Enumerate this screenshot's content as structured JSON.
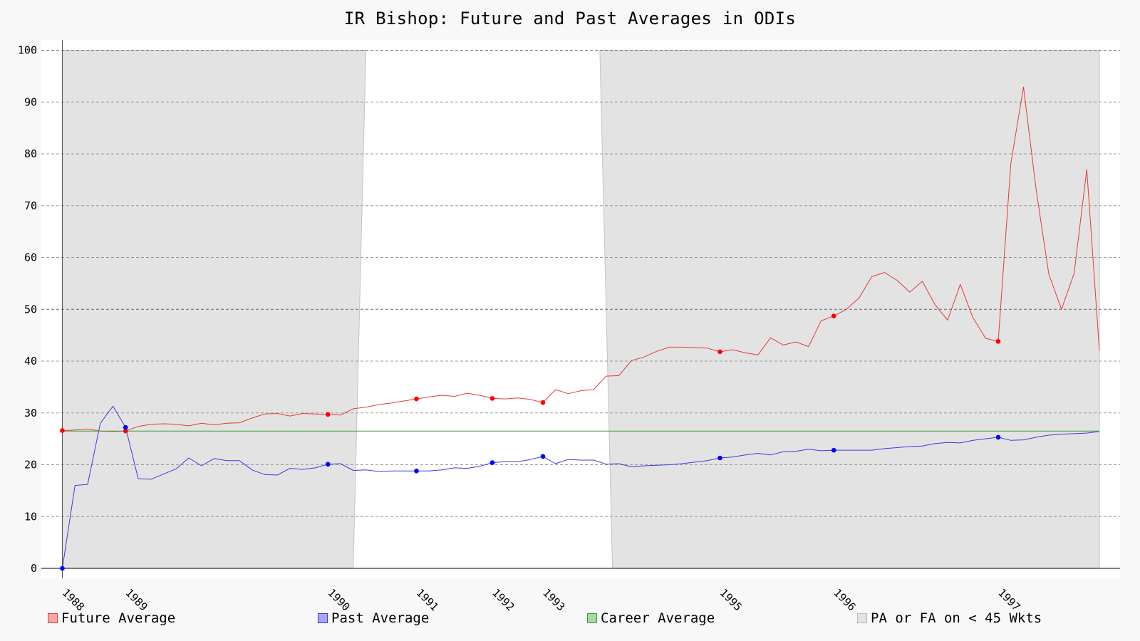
{
  "chart_data": {
    "type": "line",
    "title": "IR Bishop: Future and Past Averages in ODIs",
    "xlabel": "",
    "ylabel": "",
    "ylim": [
      0,
      100
    ],
    "yticks": [
      0,
      10,
      20,
      30,
      40,
      50,
      60,
      70,
      80,
      90,
      100
    ],
    "xtick_labels": [
      "1988",
      "1989",
      "1990",
      "1991",
      "1992",
      "1993",
      "1995",
      "1996",
      "1997"
    ],
    "xtick_match_index": [
      0,
      5,
      21,
      28,
      34,
      38,
      52,
      61,
      74
    ],
    "grid": "horizontal dashed",
    "legend_position": "bottom",
    "series": [
      {
        "name": "Future Average",
        "color": "#e33b3b",
        "values": [
          26.6,
          26.7,
          26.9,
          26.5,
          26.4,
          26.5,
          27.4,
          27.8,
          27.9,
          27.8,
          27.5,
          28.0,
          27.7,
          28.0,
          28.1,
          29.0,
          29.8,
          29.9,
          29.4,
          29.9,
          29.8,
          29.7,
          29.6,
          30.8,
          31.1,
          31.6,
          31.9,
          32.3,
          32.7,
          33.1,
          33.4,
          33.2,
          33.8,
          33.4,
          32.8,
          32.7,
          32.9,
          32.6,
          32.0,
          34.5,
          33.7,
          34.3,
          34.5,
          37.1,
          37.2,
          40.1,
          40.8,
          41.9,
          42.7,
          42.7,
          42.6,
          42.5,
          41.8,
          42.2,
          41.6,
          41.2,
          44.5,
          43.1,
          43.7,
          42.8,
          47.8,
          48.7,
          50.0,
          52.2,
          56.3,
          57.1,
          55.6,
          53.3,
          55.4,
          50.9,
          47.9,
          54.8,
          48.4,
          44.4,
          43.8,
          78.2,
          92.9,
          73.0,
          56.8,
          50.0,
          56.9,
          77.0,
          42.0
        ],
        "markers": [
          0,
          5,
          21,
          28,
          34,
          38,
          52,
          61,
          74
        ]
      },
      {
        "name": "Past Average",
        "color": "#3b3be3",
        "values": [
          0.0,
          16.0,
          16.2,
          28.0,
          31.3,
          27.2,
          17.3,
          17.2,
          18.2,
          19.2,
          21.3,
          19.8,
          21.2,
          20.8,
          20.8,
          19.0,
          18.1,
          18.0,
          19.3,
          19.1,
          19.4,
          20.1,
          20.2,
          18.9,
          19.0,
          18.7,
          18.8,
          18.8,
          18.8,
          18.8,
          19.0,
          19.4,
          19.3,
          19.7,
          20.4,
          20.6,
          20.6,
          21.0,
          21.6,
          20.2,
          21.0,
          20.9,
          20.9,
          20.1,
          20.2,
          19.6,
          19.8,
          19.9,
          20.0,
          20.2,
          20.5,
          20.8,
          21.3,
          21.5,
          21.9,
          22.2,
          21.9,
          22.5,
          22.6,
          23.0,
          22.7,
          22.8,
          22.8,
          22.8,
          22.8,
          23.1,
          23.3,
          23.5,
          23.6,
          24.1,
          24.3,
          24.2,
          24.7,
          25.0,
          25.3,
          24.7,
          24.8,
          25.3,
          25.7,
          25.9,
          26.0,
          26.1,
          26.4
        ],
        "markers": [
          0,
          5,
          21,
          28,
          34,
          38,
          52,
          61,
          74
        ]
      },
      {
        "name": "Career Average",
        "color": "#3b9c3b",
        "values": [
          26.5,
          26.5
        ]
      }
    ],
    "shaded_regions": {
      "name": "PA or FA on < 45 Wkts",
      "color": "#e3e3e3",
      "start_index_top": 0,
      "end_index_top": 24,
      "start_index_bottom": 23,
      "end_index_bottom": 43,
      "resume_index_top": 42.5,
      "resume_index_bottom": 43.5,
      "final_index": 82
    }
  }
}
